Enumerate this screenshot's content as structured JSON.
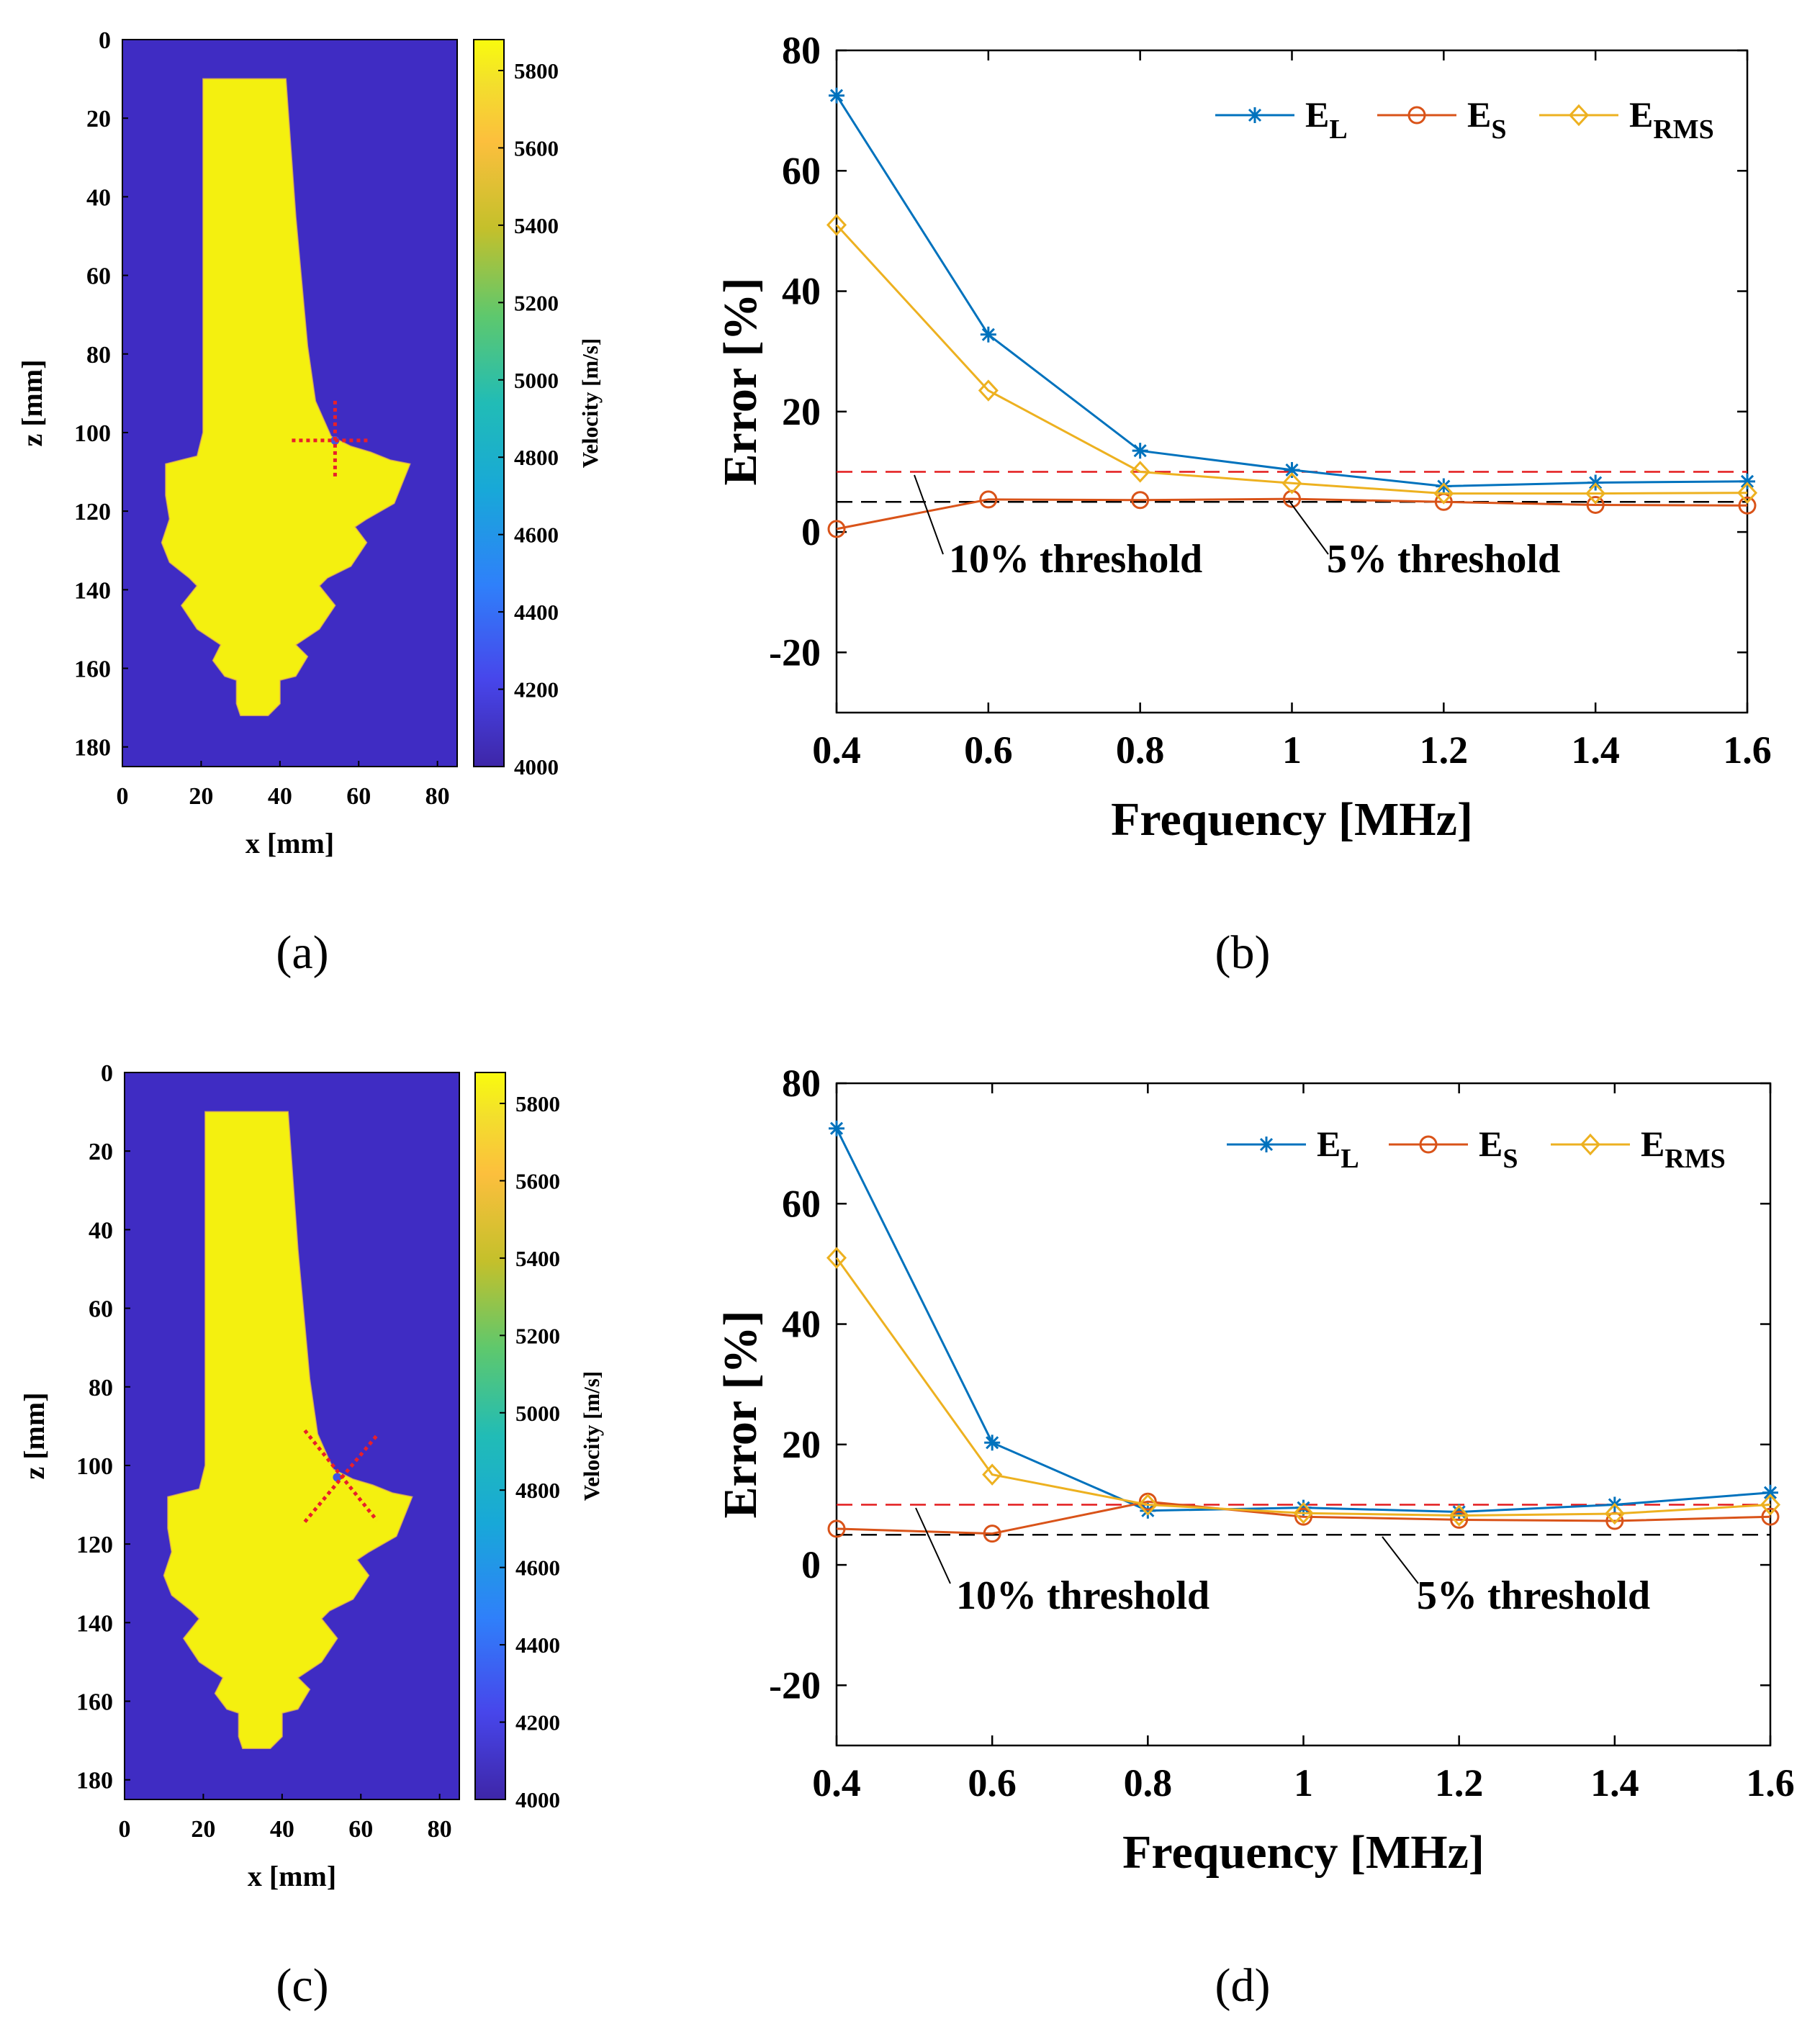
{
  "chart_data": [
    {
      "panel": "a",
      "type": "heatmap",
      "caption": "(a)",
      "xlabel": "x [mm]",
      "ylabel": "z [mm]",
      "xlim": [
        0,
        85
      ],
      "ylim": [
        185,
        0
      ],
      "xticks": [
        "0",
        "20",
        "40",
        "60",
        "80"
      ],
      "yticks": [
        "0",
        "20",
        "40",
        "60",
        "80",
        "100",
        "120",
        "140",
        "160",
        "180"
      ],
      "colorbar": {
        "label": "Velocity [m/s]",
        "range": [
          4000,
          5880
        ],
        "ticks": [
          "5800",
          "5600",
          "5400",
          "5200",
          "5000",
          "4800",
          "4600",
          "4400",
          "4200",
          "4000"
        ]
      },
      "background_velocity": 4050,
      "blade_velocity": 5850,
      "marker": {
        "type": "plus",
        "center_x": 54,
        "center_z": 102
      }
    },
    {
      "panel": "b",
      "type": "line",
      "caption": "(b)",
      "title": "",
      "xlabel": "Frequency [MHz]",
      "ylabel": "Error [%]",
      "xlim": [
        0.4,
        1.6
      ],
      "ylim": [
        -30,
        80
      ],
      "xticks": [
        "0.4",
        "0.6",
        "0.8",
        "1",
        "1.2",
        "1.4",
        "1.6"
      ],
      "yticks": [
        "80",
        "60",
        "40",
        "20",
        "0",
        "-20"
      ],
      "x": [
        0.4,
        0.6,
        0.8,
        1.0,
        1.2,
        1.4,
        1.6
      ],
      "series": [
        {
          "name": "E",
          "sub": "L",
          "marker": "asterisk",
          "color": "#0072BD",
          "values": [
            72.5,
            32.8,
            13.5,
            10.3,
            7.6,
            8.2,
            8.4
          ]
        },
        {
          "name": "E",
          "sub": "S",
          "marker": "circle",
          "color": "#D95319",
          "values": [
            0.5,
            5.4,
            5.3,
            5.5,
            5.0,
            4.5,
            4.4
          ]
        },
        {
          "name": "E",
          "sub": "RMS",
          "marker": "diamond",
          "color": "#EDB120",
          "values": [
            51.0,
            23.5,
            10.0,
            8.1,
            6.4,
            6.4,
            6.5
          ]
        }
      ],
      "thresholds": [
        {
          "value": 10,
          "color": "#E31A1C",
          "label": "10% threshold"
        },
        {
          "value": 5,
          "color": "#000000",
          "label": "5% threshold"
        }
      ],
      "legend": "top-right"
    },
    {
      "panel": "c",
      "type": "heatmap",
      "caption": "(c)",
      "xlabel": "x [mm]",
      "ylabel": "z [mm]",
      "xlim": [
        0,
        85
      ],
      "ylim": [
        185,
        0
      ],
      "xticks": [
        "0",
        "20",
        "40",
        "60",
        "80"
      ],
      "yticks": [
        "0",
        "20",
        "40",
        "60",
        "80",
        "100",
        "120",
        "140",
        "160",
        "180"
      ],
      "colorbar": {
        "label": "Velocity [m/s]",
        "range": [
          4000,
          5880
        ],
        "ticks": [
          "5800",
          "5600",
          "5400",
          "5200",
          "5000",
          "4800",
          "4600",
          "4400",
          "4200",
          "4000"
        ]
      },
      "background_velocity": 4050,
      "blade_velocity": 5850,
      "marker": {
        "type": "cross",
        "center_x": 54,
        "center_z": 103
      }
    },
    {
      "panel": "d",
      "type": "line",
      "caption": "(d)",
      "title": "",
      "xlabel": "Frequency [MHz]",
      "ylabel": "Error [%]",
      "xlim": [
        0.4,
        1.6
      ],
      "ylim": [
        -30,
        80
      ],
      "xticks": [
        "0.4",
        "0.6",
        "0.8",
        "1",
        "1.2",
        "1.4",
        "1.6"
      ],
      "yticks": [
        "80",
        "60",
        "40",
        "20",
        "0",
        "-20"
      ],
      "x": [
        0.4,
        0.6,
        0.8,
        1.0,
        1.2,
        1.4,
        1.6
      ],
      "series": [
        {
          "name": "E",
          "sub": "L",
          "marker": "asterisk",
          "color": "#0072BD",
          "values": [
            72.5,
            20.3,
            9.0,
            9.5,
            8.8,
            10.0,
            12.0
          ]
        },
        {
          "name": "E",
          "sub": "S",
          "marker": "circle",
          "color": "#D95319",
          "values": [
            6.0,
            5.2,
            10.5,
            8.0,
            7.5,
            7.3,
            8.0
          ]
        },
        {
          "name": "E",
          "sub": "RMS",
          "marker": "diamond",
          "color": "#EDB120",
          "values": [
            51.0,
            15.0,
            10.0,
            8.6,
            8.2,
            8.5,
            10.0
          ]
        }
      ],
      "thresholds": [
        {
          "value": 10,
          "color": "#E31A1C",
          "label": "10% threshold"
        },
        {
          "value": 5,
          "color": "#000000",
          "label": "5% threshold"
        }
      ],
      "legend": "top-right"
    }
  ]
}
